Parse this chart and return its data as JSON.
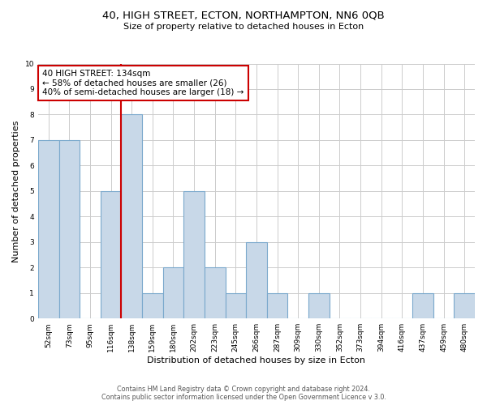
{
  "title": "40, HIGH STREET, ECTON, NORTHAMPTON, NN6 0QB",
  "subtitle": "Size of property relative to detached houses in Ecton",
  "xlabel": "Distribution of detached houses by size in Ecton",
  "ylabel": "Number of detached properties",
  "footer_line1": "Contains HM Land Registry data © Crown copyright and database right 2024.",
  "footer_line2": "Contains public sector information licensed under the Open Government Licence v 3.0.",
  "categories": [
    "52sqm",
    "73sqm",
    "95sqm",
    "116sqm",
    "138sqm",
    "159sqm",
    "180sqm",
    "202sqm",
    "223sqm",
    "245sqm",
    "266sqm",
    "287sqm",
    "309sqm",
    "330sqm",
    "352sqm",
    "373sqm",
    "394sqm",
    "416sqm",
    "437sqm",
    "459sqm",
    "480sqm"
  ],
  "values": [
    7,
    7,
    0,
    5,
    8,
    1,
    2,
    5,
    2,
    1,
    3,
    1,
    0,
    1,
    0,
    0,
    0,
    0,
    1,
    0,
    1
  ],
  "bar_color": "#c8d8e8",
  "bar_edge_color": "#7aa8cc",
  "highlight_bar_index": 4,
  "highlight_line_color": "#cc0000",
  "annotation_text": "40 HIGH STREET: 134sqm\n← 58% of detached houses are smaller (26)\n40% of semi-detached houses are larger (18) →",
  "annotation_box_color": "#ffffff",
  "annotation_box_edge_color": "#cc0000",
  "ylim": [
    0,
    10
  ],
  "yticks": [
    0,
    1,
    2,
    3,
    4,
    5,
    6,
    7,
    8,
    9,
    10
  ],
  "grid_color": "#cccccc",
  "background_color": "#ffffff",
  "title_fontsize": 9.5,
  "subtitle_fontsize": 8,
  "axis_label_fontsize": 8,
  "tick_fontsize": 6.5,
  "annotation_fontsize": 7.5,
  "footer_fontsize": 5.8
}
